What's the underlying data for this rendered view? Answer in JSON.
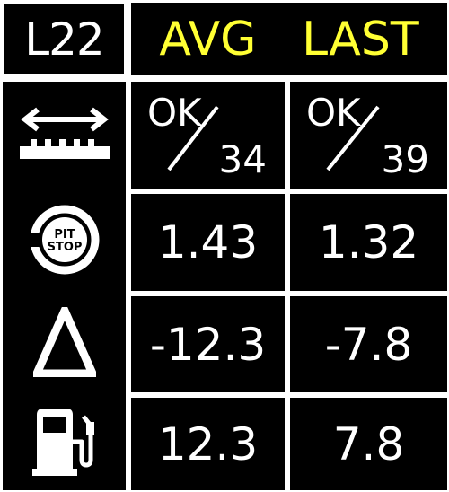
{
  "header": {
    "lap_label": "L22",
    "col_avg": "AVG",
    "col_last": "LAST"
  },
  "colors": {
    "background": "#000000",
    "header_text": "#ffff33",
    "text": "#ffffff",
    "grid": "#ffffff"
  },
  "rows": [
    {
      "icon": "track-limits-icon",
      "avg": {
        "top": "OK",
        "bottom": "34"
      },
      "last": {
        "top": "OK",
        "bottom": "39"
      }
    },
    {
      "icon": "pit-stop-icon",
      "icon_text_1": "PIT",
      "icon_text_2": "STOP",
      "avg": "1.43",
      "last": "1.32"
    },
    {
      "icon": "delta-icon",
      "avg": "-12.3",
      "last": "-7.8"
    },
    {
      "icon": "fuel-pump-icon",
      "avg": "12.3",
      "last": "7.8"
    }
  ]
}
